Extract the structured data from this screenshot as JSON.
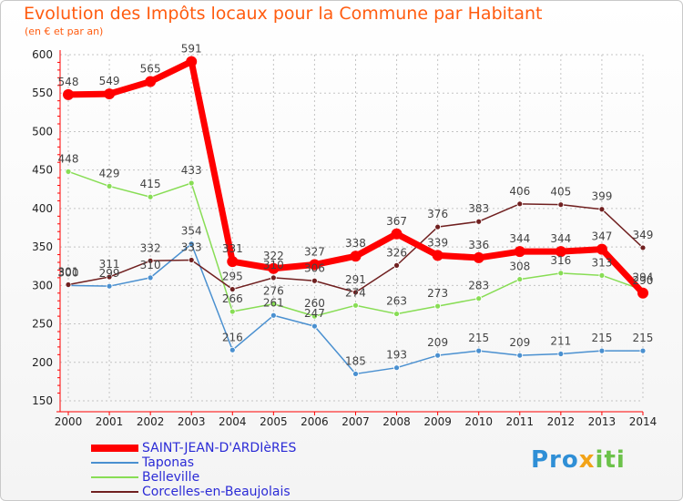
{
  "title": "Evolution des Impôts locaux pour la Commune par Habitant",
  "subtitle": "(en € et par an)",
  "logo": [
    "Pro",
    "x",
    "iti"
  ],
  "chart_data": {
    "type": "line",
    "x": [
      "2000",
      "2001",
      "2002",
      "2003",
      "2004",
      "2005",
      "2006",
      "2007",
      "2008",
      "2009",
      "2010",
      "2011",
      "2012",
      "2013",
      "2014"
    ],
    "yticks": [
      150,
      200,
      250,
      300,
      350,
      400,
      450,
      500,
      550,
      600
    ],
    "ylim": [
      150,
      600
    ],
    "grid": true,
    "legend_position": "bottom-left",
    "series": [
      {
        "name": "SAINT-JEAN-D'ARDIèRES",
        "color": "#ff0000",
        "thick": true,
        "values": [
          548,
          549,
          565,
          591,
          331,
          322,
          327,
          338,
          367,
          339,
          336,
          344,
          344,
          347,
          290
        ],
        "labels": [
          "548",
          "549",
          "565",
          "591",
          "331",
          "322",
          "327",
          "338",
          "367",
          "339",
          "336",
          "344",
          "344",
          "347",
          "290"
        ]
      },
      {
        "name": "Taponas",
        "color": "#4a90d0",
        "thick": false,
        "values": [
          300,
          299,
          310,
          354,
          216,
          261,
          247,
          185,
          193,
          209,
          215,
          209,
          211,
          215,
          215
        ],
        "labels": [
          "300",
          "299",
          "310",
          "354",
          "216",
          "261",
          "247",
          "185",
          "193",
          "209",
          "215",
          "209",
          "211",
          "215",
          "215"
        ]
      },
      {
        "name": "Belleville",
        "color": "#88dd55",
        "thick": false,
        "values": [
          448,
          429,
          415,
          433,
          266,
          276,
          260,
          274,
          263,
          273,
          283,
          308,
          316,
          313,
          294
        ],
        "labels": [
          "448",
          "429",
          "415",
          "433",
          "266",
          "276",
          "260",
          "274",
          "263",
          "273",
          "283",
          "308",
          "316",
          "313",
          "294"
        ]
      },
      {
        "name": "Corcelles-en-Beaujolais",
        "color": "#702020",
        "thick": false,
        "values": [
          301,
          311,
          332,
          333,
          295,
          310,
          306,
          291,
          326,
          376,
          383,
          406,
          405,
          399,
          349
        ],
        "labels": [
          "301",
          "311",
          "332",
          "333",
          "295",
          "310",
          "306",
          "291",
          "326",
          "376",
          "383",
          "406",
          "405",
          "399",
          "349"
        ]
      }
    ]
  }
}
